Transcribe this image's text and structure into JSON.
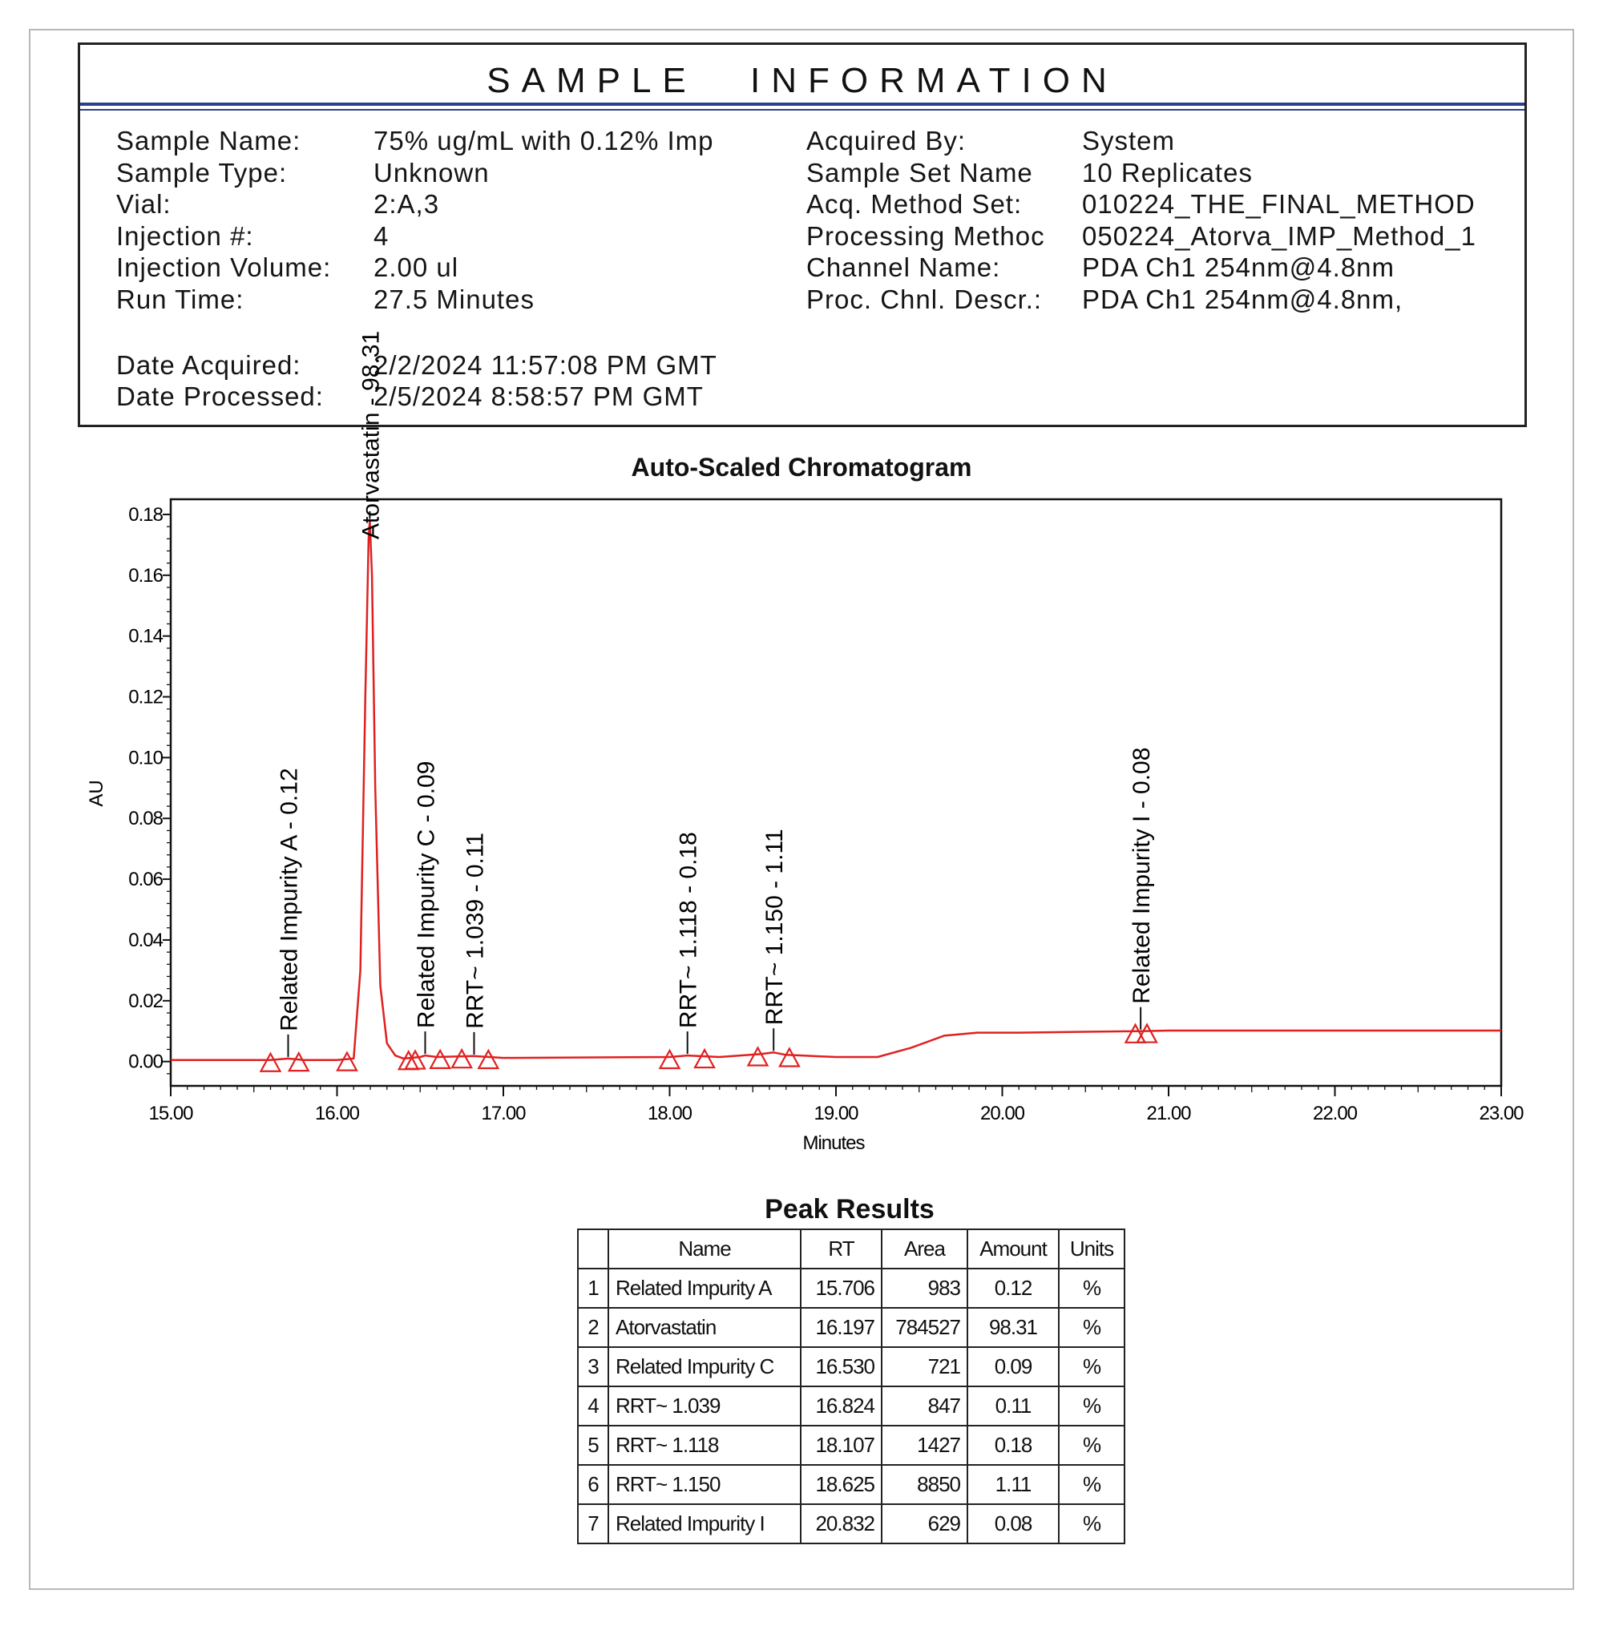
{
  "sample_info": {
    "title": "SAMPLE INFORMATION",
    "left_fields": [
      {
        "label": "Sample Name:",
        "value": "75% ug/mL with 0.12% Imp"
      },
      {
        "label": "Sample Type:",
        "value": "Unknown"
      },
      {
        "label": "Vial:",
        "value": "2:A,3"
      },
      {
        "label": "Injection #:",
        "value": "4"
      },
      {
        "label": "Injection Volume:",
        "value": "2.00 ul"
      },
      {
        "label": "Run Time:",
        "value": "27.5 Minutes"
      },
      {
        "label": "Date Acquired:",
        "value": "2/2/2024 11:57:08 PM GMT"
      },
      {
        "label": "Date Processed:",
        "value": "2/5/2024 8:58:57 PM GMT"
      }
    ],
    "right_fields": [
      {
        "label": "Acquired By:",
        "value": "System"
      },
      {
        "label": "Sample Set Name",
        "value": "10 Replicates"
      },
      {
        "label": "Acq. Method Set:",
        "value": "010224_THE_FINAL_METHOD"
      },
      {
        "label": "Processing Methoc",
        "value": "050224_Atorva_IMP_Method_1"
      },
      {
        "label": "Channel Name:",
        "value": "PDA Ch1 254nm@4.8nm"
      },
      {
        "label": "Proc. Chnl. Descr.:",
        "value": "PDA Ch1 254nm@4.8nm,"
      }
    ]
  },
  "chart_data": {
    "type": "line",
    "title": "Auto-Scaled Chromatogram",
    "xlabel": "Minutes",
    "ylabel": "AU",
    "xlim": [
      15.0,
      23.0
    ],
    "ylim": [
      -0.008,
      0.185
    ],
    "x_ticks": [
      "15.00",
      "16.00",
      "17.00",
      "18.00",
      "19.00",
      "20.00",
      "21.00",
      "22.00",
      "23.00"
    ],
    "y_ticks": [
      "0.00",
      "0.02",
      "0.04",
      "0.06",
      "0.08",
      "0.10",
      "0.12",
      "0.14",
      "0.16",
      "0.18"
    ],
    "trace_color": "#e02020",
    "trace": {
      "x": [
        15.0,
        15.6,
        15.706,
        15.8,
        16.0,
        16.1,
        16.14,
        16.17,
        16.19,
        16.197,
        16.21,
        16.23,
        16.26,
        16.3,
        16.35,
        16.4,
        16.5,
        16.53,
        16.6,
        16.82,
        17.0,
        18.0,
        18.107,
        18.3,
        18.55,
        18.625,
        18.7,
        19.0,
        19.25,
        19.45,
        19.65,
        19.85,
        20.1,
        20.5,
        20.832,
        21.0,
        22.0,
        23.0
      ],
      "y": [
        0.0005,
        0.0005,
        0.001,
        0.0005,
        0.0005,
        0.001,
        0.03,
        0.12,
        0.172,
        0.178,
        0.16,
        0.09,
        0.025,
        0.006,
        0.002,
        0.001,
        0.0015,
        0.002,
        0.0015,
        0.0018,
        0.0012,
        0.0015,
        0.002,
        0.0015,
        0.0025,
        0.003,
        0.0022,
        0.0015,
        0.0015,
        0.0045,
        0.0085,
        0.0095,
        0.0095,
        0.0098,
        0.01,
        0.0102,
        0.0102,
        0.0102
      ]
    },
    "peak_labels": [
      {
        "text": "Related Impurity A - 0.12",
        "rt": 15.706
      },
      {
        "text": "Atorvastatin - 98.31",
        "rt": 16.197
      },
      {
        "text": "Related Impurity C - 0.09",
        "rt": 16.53
      },
      {
        "text": "RRT~ 1.039 - 0.11",
        "rt": 16.824
      },
      {
        "text": "RRT~ 1.118 - 0.18",
        "rt": 18.107
      },
      {
        "text": "RRT~ 1.150 - 1.11",
        "rt": 18.625
      },
      {
        "text": "Related Impurity I - 0.08",
        "rt": 20.832
      }
    ],
    "peak_markers_x": [
      15.6,
      15.77,
      16.06,
      16.43,
      16.47,
      16.62,
      16.75,
      16.91,
      18.0,
      18.21,
      18.53,
      18.72,
      20.8,
      20.87
    ]
  },
  "peak_results": {
    "title": "Peak Results",
    "columns": [
      "",
      "Name",
      "RT",
      "Area",
      "Amount",
      "Units"
    ],
    "rows": [
      {
        "idx": "1",
        "name": "Related Impurity A",
        "rt": "15.706",
        "area": "983",
        "amount": "0.12",
        "units": "%"
      },
      {
        "idx": "2",
        "name": "Atorvastatin",
        "rt": "16.197",
        "area": "784527",
        "amount": "98.31",
        "units": "%"
      },
      {
        "idx": "3",
        "name": "Related Impurity C",
        "rt": "16.530",
        "area": "721",
        "amount": "0.09",
        "units": "%"
      },
      {
        "idx": "4",
        "name": "RRT~ 1.039",
        "rt": "16.824",
        "area": "847",
        "amount": "0.11",
        "units": "%"
      },
      {
        "idx": "5",
        "name": "RRT~ 1.118",
        "rt": "18.107",
        "area": "1427",
        "amount": "0.18",
        "units": "%"
      },
      {
        "idx": "6",
        "name": "RRT~ 1.150",
        "rt": "18.625",
        "area": "8850",
        "amount": "1.11",
        "units": "%"
      },
      {
        "idx": "7",
        "name": "Related Impurity I",
        "rt": "20.832",
        "area": "629",
        "amount": "0.08",
        "units": "%"
      }
    ]
  }
}
